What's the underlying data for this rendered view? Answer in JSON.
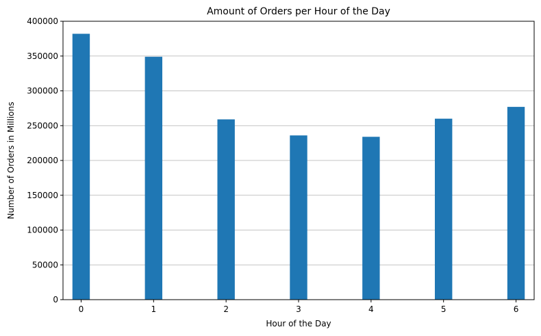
{
  "chart_data": {
    "type": "bar",
    "title": "Amount of Orders per Hour of the Day",
    "xlabel": "Hour of the Day",
    "ylabel": "Number of Orders in Millions",
    "x": [
      0,
      1,
      2,
      3,
      4,
      5,
      6
    ],
    "values": [
      382000,
      349000,
      259000,
      236000,
      234000,
      260000,
      277000
    ],
    "xticks": [
      0,
      1,
      2,
      3,
      4,
      5,
      6
    ],
    "yticks": [
      0,
      50000,
      100000,
      150000,
      200000,
      250000,
      300000,
      350000,
      400000
    ],
    "xlim": [
      -0.25,
      6.25
    ],
    "ylim": [
      0,
      400000
    ],
    "bar_width": 0.24,
    "bar_color": "#1f77b4",
    "grid": "y-major"
  }
}
